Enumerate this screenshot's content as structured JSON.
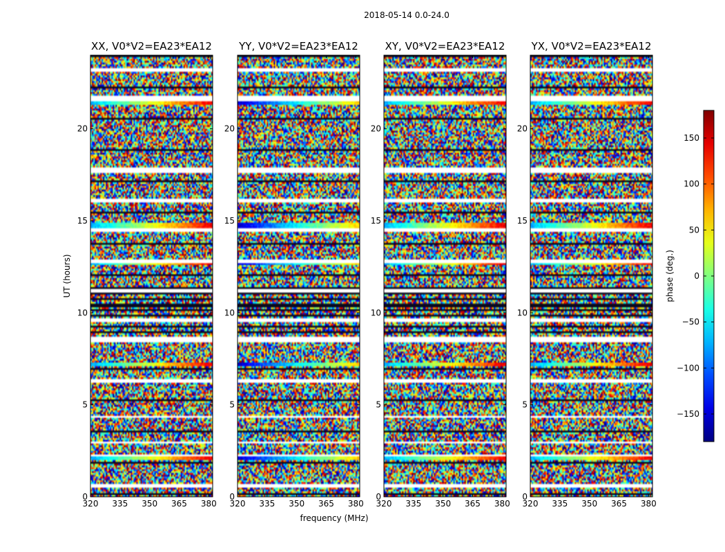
{
  "chart_data": {
    "type": "heatmap",
    "suptitle": "2018-05-14 0.0-24.0",
    "xlabel": "frequency (MHz)",
    "ylabel": "UT (hours)",
    "xlim": [
      320,
      382
    ],
    "ylim": [
      0,
      24
    ],
    "xticks": [
      "320",
      "335",
      "350",
      "365",
      "380"
    ],
    "xtick_values": [
      320,
      335,
      350,
      365,
      380
    ],
    "yticks": [
      "0",
      "5",
      "10",
      "15",
      "20"
    ],
    "ytick_values": [
      0,
      5,
      10,
      15,
      20
    ],
    "colorbar": {
      "label": "phase (deg.)",
      "range": [
        -180,
        180
      ],
      "ticks": [
        "−150",
        "−100",
        "−50",
        "0",
        "50",
        "100",
        "150"
      ],
      "tick_values": [
        -150,
        -100,
        -50,
        0,
        50,
        100,
        150
      ],
      "colormap": "jet"
    },
    "panels": [
      {
        "title": "XX, V0*V2=EA23*EA12"
      },
      {
        "title": "YY, V0*V2=EA23*EA12"
      },
      {
        "title": "XY, V0*V2=EA23*EA12"
      },
      {
        "title": "YX, V0*V2=EA23*EA12"
      }
    ],
    "flagged_ut_hours": [
      [
        23.15,
        23.3
      ],
      [
        21.55,
        21.75
      ],
      [
        17.65,
        17.85
      ],
      [
        16.05,
        16.2
      ],
      [
        14.45,
        14.6
      ],
      [
        12.75,
        12.9
      ],
      [
        11.15,
        11.3
      ],
      [
        9.55,
        9.7
      ],
      [
        8.4,
        8.7
      ],
      [
        6.2,
        6.35
      ],
      [
        4.3,
        4.4
      ],
      [
        2.9,
        3.0
      ],
      [
        2.2,
        2.3
      ],
      [
        1.45,
        1.55
      ],
      [
        0.55,
        0.65
      ]
    ],
    "coherent_bands_ut_hours": [
      [
        21.35,
        21.55
      ],
      [
        16.0,
        16.05
      ],
      [
        14.6,
        14.9
      ],
      [
        12.65,
        12.9
      ],
      [
        7.1,
        7.3
      ],
      [
        6.25,
        6.4
      ],
      [
        2.0,
        2.2
      ]
    ]
  }
}
